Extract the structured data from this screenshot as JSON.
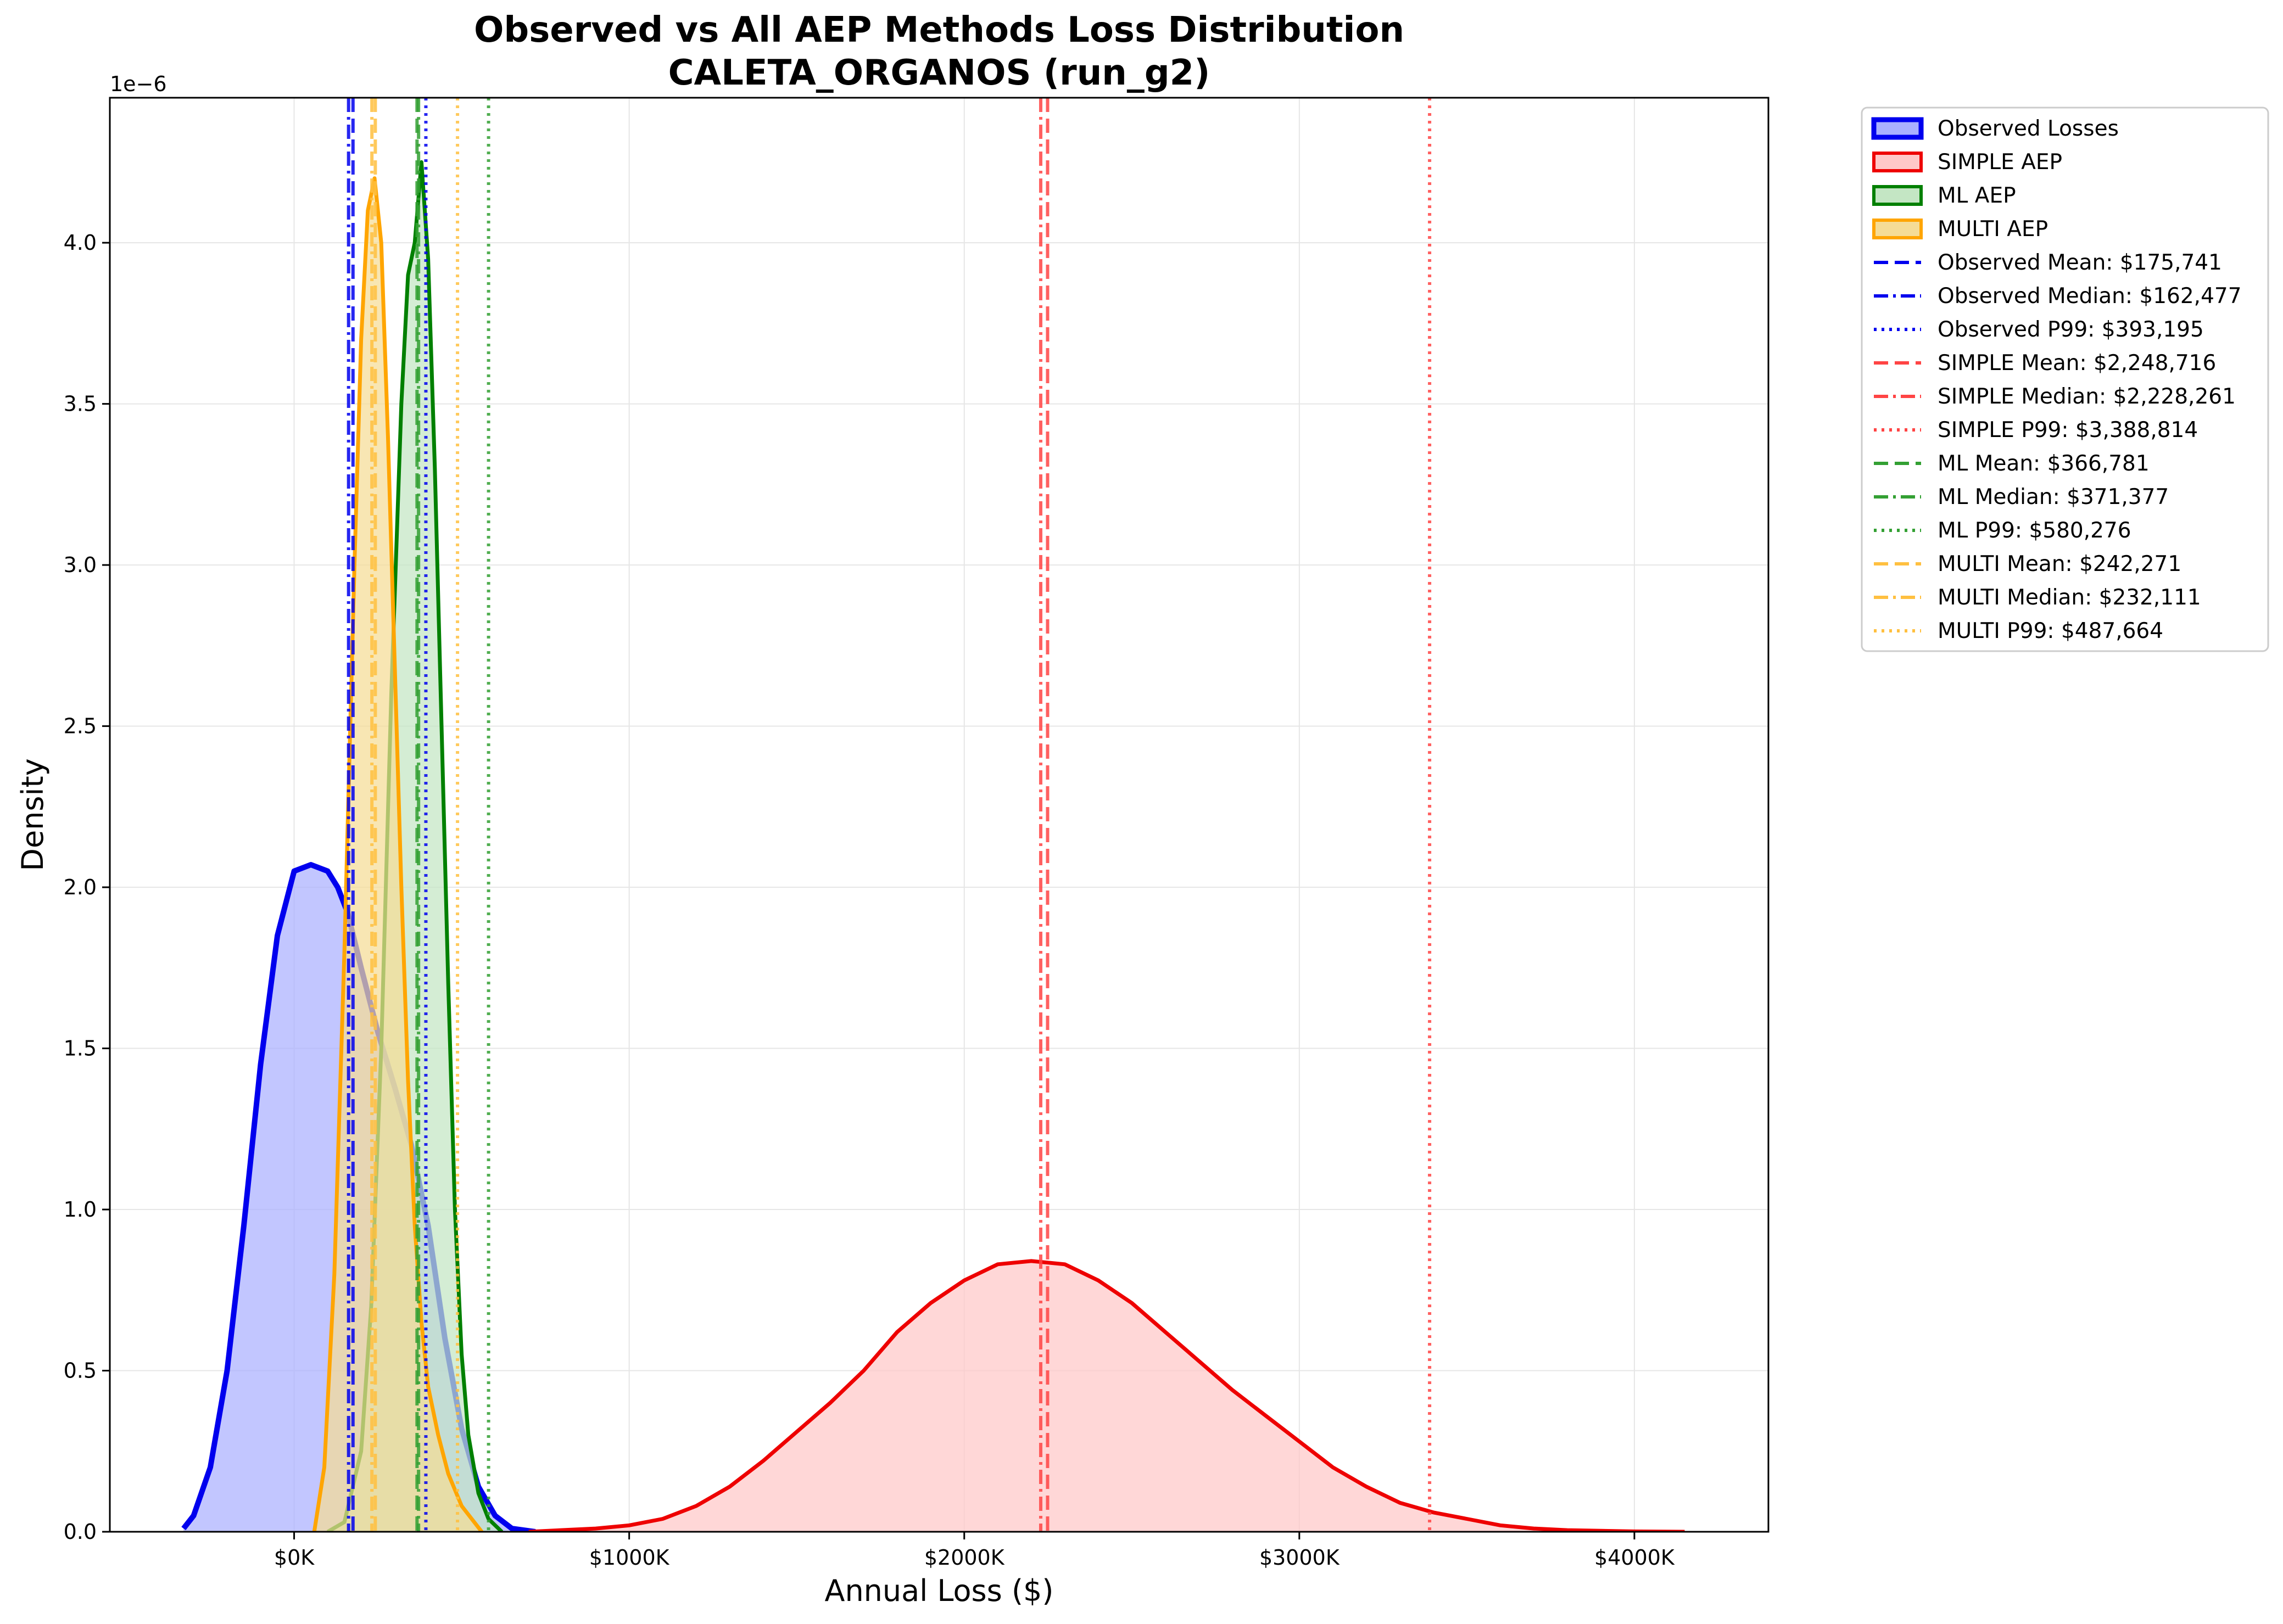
{
  "chart_data": {
    "type": "area",
    "title": [
      "Observed vs All AEP Methods Loss Distribution",
      "CALETA_ORGANOS (run_g2)"
    ],
    "xlabel": "Annual Loss ($)",
    "ylabel": "Density",
    "y_offset_label": "1e−6",
    "xlim": [
      -550000,
      4400000
    ],
    "ylim": [
      0,
      4.45
    ],
    "x_ticks": [
      0,
      1000000,
      2000000,
      3000000,
      4000000
    ],
    "x_tick_labels": [
      "$0K",
      "$1000K",
      "$2000K",
      "$3000K",
      "$4000K"
    ],
    "y_ticks": [
      0,
      0.5,
      1.0,
      1.5,
      2.0,
      2.5,
      3.0,
      3.5,
      4.0
    ],
    "y_tick_labels": [
      "0.0",
      "0.5",
      "1.0",
      "1.5",
      "2.0",
      "2.5",
      "3.0",
      "3.5",
      "4.0"
    ],
    "grid": true,
    "legend_position": "outside-right-top",
    "series": [
      {
        "name": "Observed Losses",
        "color": "#0000ee",
        "fill": "#aab0ff",
        "x": [
          -330000,
          -300000,
          -250000,
          -200000,
          -150000,
          -100000,
          -50000,
          0,
          50000,
          100000,
          130000,
          160000,
          200000,
          250000,
          300000,
          350000,
          400000,
          450000,
          500000,
          550000,
          600000,
          650000,
          720000
        ],
        "values": [
          0.01,
          0.05,
          0.2,
          0.5,
          0.95,
          1.45,
          1.85,
          2.05,
          2.07,
          2.05,
          2.0,
          1.92,
          1.75,
          1.55,
          1.38,
          1.2,
          0.95,
          0.6,
          0.32,
          0.14,
          0.05,
          0.01,
          0.0
        ]
      },
      {
        "name": "SIMPLE AEP",
        "color": "#ee0000",
        "fill": "#ffc8c8",
        "x": [
          700000,
          900000,
          1000000,
          1100000,
          1200000,
          1300000,
          1400000,
          1500000,
          1600000,
          1700000,
          1800000,
          1900000,
          2000000,
          2100000,
          2200000,
          2300000,
          2400000,
          2500000,
          2600000,
          2700000,
          2800000,
          2900000,
          3000000,
          3100000,
          3200000,
          3300000,
          3400000,
          3500000,
          3600000,
          3700000,
          3800000,
          3900000,
          4000000,
          4150000
        ],
        "values": [
          0.0,
          0.01,
          0.02,
          0.04,
          0.08,
          0.14,
          0.22,
          0.31,
          0.4,
          0.5,
          0.62,
          0.71,
          0.78,
          0.83,
          0.84,
          0.83,
          0.78,
          0.71,
          0.62,
          0.53,
          0.44,
          0.36,
          0.28,
          0.2,
          0.14,
          0.09,
          0.06,
          0.04,
          0.02,
          0.01,
          0.005,
          0.003,
          0.001,
          0.0
        ]
      },
      {
        "name": "ML AEP",
        "color": "#008000",
        "fill": "#c4e6c4",
        "x": [
          100000,
          150000,
          200000,
          230000,
          260000,
          290000,
          320000,
          340000,
          360000,
          380000,
          400000,
          420000,
          440000,
          460000,
          480000,
          500000,
          520000,
          550000,
          580000,
          620000
        ],
        "values": [
          0.0,
          0.03,
          0.25,
          0.7,
          1.5,
          2.6,
          3.5,
          3.9,
          4.0,
          4.25,
          3.95,
          3.3,
          2.5,
          1.7,
          1.0,
          0.55,
          0.3,
          0.12,
          0.04,
          0.0
        ]
      },
      {
        "name": "MULTI AEP",
        "color": "#ffa500",
        "fill": "#f5dc96",
        "x": [
          60000,
          90000,
          120000,
          150000,
          180000,
          200000,
          220000,
          240000,
          260000,
          280000,
          300000,
          320000,
          340000,
          360000,
          380000,
          400000,
          430000,
          460000,
          500000,
          560000
        ],
        "values": [
          0.0,
          0.2,
          0.8,
          1.8,
          3.0,
          3.7,
          4.1,
          4.2,
          4.0,
          3.4,
          2.7,
          2.0,
          1.4,
          0.95,
          0.65,
          0.45,
          0.3,
          0.18,
          0.08,
          0.0
        ]
      }
    ],
    "reference_lines": [
      {
        "name": "Observed Mean: $175,741",
        "x": 175741,
        "color": "#0000ee",
        "style": "dashed",
        "label": "Observed Mean: $175,741"
      },
      {
        "name": "Observed Median: $162,477",
        "x": 162477,
        "color": "#0000ee",
        "style": "dashdot",
        "label": "Observed Median: $162,477"
      },
      {
        "name": "Observed P99: $393,195",
        "x": 393195,
        "color": "#0000ee",
        "style": "dotted",
        "label": "Observed P99: $393,195"
      },
      {
        "name": "SIMPLE Mean: $2,248,716",
        "x": 2248716,
        "color": "#ff4444",
        "style": "dashed",
        "label": "SIMPLE Mean: $2,248,716"
      },
      {
        "name": "SIMPLE Median: $2,228,261",
        "x": 2228261,
        "color": "#ff4444",
        "style": "dashdot",
        "label": "SIMPLE Median: $2,228,261"
      },
      {
        "name": "SIMPLE P99: $3,388,814",
        "x": 3388814,
        "color": "#ff4444",
        "style": "dotted",
        "label": "SIMPLE P99: $3,388,814"
      },
      {
        "name": "ML Mean: $366,781",
        "x": 366781,
        "color": "#33a033",
        "style": "dashed",
        "label": "ML Mean: $366,781"
      },
      {
        "name": "ML Median: $371,377",
        "x": 371377,
        "color": "#33a033",
        "style": "dashdot",
        "label": "ML Median: $371,377"
      },
      {
        "name": "ML P99: $580,276",
        "x": 580276,
        "color": "#33a033",
        "style": "dotted",
        "label": "ML P99: $580,276"
      },
      {
        "name": "MULTI Mean: $242,271",
        "x": 242271,
        "color": "#ffc040",
        "style": "dashed",
        "label": "MULTI Mean: $242,271"
      },
      {
        "name": "MULTI Median: $232,111",
        "x": 232111,
        "color": "#ffc040",
        "style": "dashdot",
        "label": "MULTI Median: $232,111"
      },
      {
        "name": "MULTI P99: $487,664",
        "x": 487664,
        "color": "#ffc040",
        "style": "dotted",
        "label": "MULTI P99: $487,664"
      }
    ]
  }
}
